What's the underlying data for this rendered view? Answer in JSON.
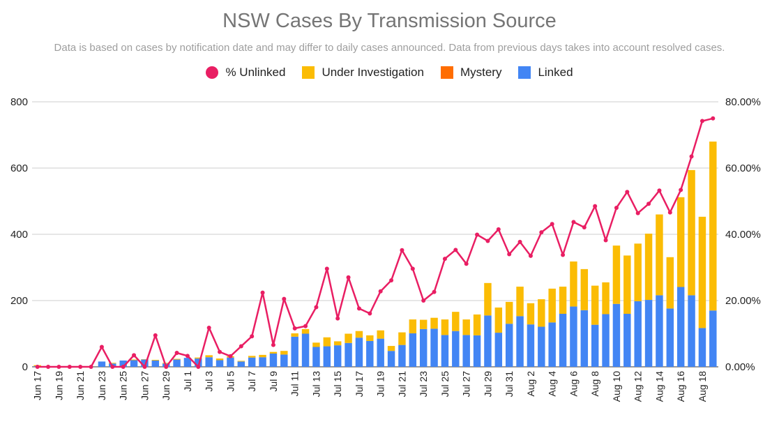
{
  "chart_data": {
    "type": "bar",
    "title": "NSW Cases By Transmission Source",
    "subtitle": "Data is based on cases by notification date and may differ to daily cases announced. Data from previous days takes into account resolved cases.",
    "legend": [
      {
        "name": "% Unlinked",
        "color": "#e91e63",
        "marker": "dot"
      },
      {
        "name": "Under Investigation",
        "color": "#fbbc04",
        "marker": "square"
      },
      {
        "name": "Mystery",
        "color": "#ff6d01",
        "marker": "square"
      },
      {
        "name": "Linked",
        "color": "#4285f4",
        "marker": "square"
      }
    ],
    "legend_position": "top",
    "grid": true,
    "ylim": [
      0,
      800
    ],
    "yticks": [
      "0",
      "200",
      "400",
      "600",
      "800"
    ],
    "y2lim": [
      0,
      80
    ],
    "y2ticks": [
      "0.00%",
      "20.00%",
      "40.00%",
      "60.00%",
      "80.00%"
    ],
    "categories": [
      "Jun 17",
      "Jun 18",
      "Jun 19",
      "Jun 20",
      "Jun 21",
      "Jun 22",
      "Jun 23",
      "Jun 24",
      "Jun 25",
      "Jun 26",
      "Jun 27",
      "Jun 28",
      "Jun 29",
      "Jun 30",
      "Jul 1",
      "Jul 2",
      "Jul 3",
      "Jul 4",
      "Jul 5",
      "Jul 6",
      "Jul 7",
      "Jul 8",
      "Jul 9",
      "Jul 10",
      "Jul 11",
      "Jul 12",
      "Jul 13",
      "Jul 14",
      "Jul 15",
      "Jul 16",
      "Jul 17",
      "Jul 18",
      "Jul 19",
      "Jul 20",
      "Jul 21",
      "Jul 22",
      "Jul 23",
      "Jul 24",
      "Jul 25",
      "Jul 26",
      "Jul 27",
      "Jul 28",
      "Jul 29",
      "Jul 30",
      "Jul 31",
      "Aug 1",
      "Aug 2",
      "Aug 3",
      "Aug 4",
      "Aug 5",
      "Aug 6",
      "Aug 7",
      "Aug 8",
      "Aug 9",
      "Aug 10",
      "Aug 11",
      "Aug 12",
      "Aug 13",
      "Aug 14",
      "Aug 15",
      "Aug 16",
      "Aug 17",
      "Aug 18",
      "Aug 19"
    ],
    "x_tick_labels": [
      "Jun 17",
      "Jun 19",
      "Jun 21",
      "Jun 23",
      "Jun 25",
      "Jun 27",
      "Jun 29",
      "Jul 1",
      "Jul 3",
      "Jul 5",
      "Jul 7",
      "Jul 9",
      "Jul 11",
      "Jul 13",
      "Jul 15",
      "Jul 17",
      "Jul 19",
      "Jul 21",
      "Jul 23",
      "Jul 25",
      "Jul 27",
      "Jul 29",
      "Jul 31",
      "Aug 2",
      "Aug 4",
      "Aug 6",
      "Aug 8",
      "Aug 10",
      "Aug 12",
      "Aug 14",
      "Aug 16",
      "Aug 18"
    ],
    "series": [
      {
        "name": "Linked",
        "color": "#4285f4",
        "axis": "left",
        "values": [
          2,
          0,
          0,
          0,
          0,
          0,
          16,
          10,
          19,
          20,
          22,
          19,
          10,
          22,
          27,
          25,
          29,
          20,
          28,
          16,
          28,
          29,
          40,
          37,
          91,
          100,
          60,
          62,
          65,
          72,
          88,
          78,
          85,
          48,
          66,
          101,
          114,
          115,
          96,
          108,
          96,
          95,
          155,
          103,
          130,
          153,
          128,
          121,
          134,
          160,
          182,
          171,
          127,
          159,
          190,
          160,
          198,
          202,
          216,
          176,
          241,
          216,
          117,
          170
        ]
      },
      {
        "name": "Mystery",
        "color": "#ff6d01",
        "axis": "left",
        "values": [
          0,
          0,
          0,
          0,
          0,
          0,
          0,
          0,
          0,
          0,
          0,
          0,
          0,
          0,
          0,
          0,
          0,
          0,
          0,
          0,
          0,
          0,
          0,
          0,
          0,
          0,
          0,
          0,
          0,
          0,
          0,
          0,
          0,
          0,
          0,
          0,
          0,
          0,
          0,
          0,
          0,
          0,
          0,
          0,
          0,
          0,
          0,
          0,
          0,
          0,
          0,
          0,
          0,
          0,
          0,
          0,
          0,
          0,
          0,
          0,
          0,
          0,
          0,
          0
        ]
      },
      {
        "name": "Under Investigation",
        "color": "#fbbc04",
        "axis": "left",
        "values": [
          3,
          0,
          0,
          0,
          0,
          0,
          0,
          2,
          0,
          2,
          1,
          2,
          2,
          2,
          0,
          3,
          6,
          5,
          4,
          2,
          5,
          7,
          5,
          11,
          10,
          14,
          13,
          27,
          12,
          28,
          20,
          17,
          25,
          15,
          38,
          42,
          28,
          33,
          47,
          58,
          47,
          63,
          98,
          76,
          66,
          89,
          64,
          83,
          102,
          82,
          136,
          124,
          118,
          96,
          176,
          176,
          174,
          200,
          244,
          155,
          271,
          378,
          336,
          510
        ]
      },
      {
        "name": "% Unlinked",
        "color": "#e91e63",
        "axis": "right",
        "type": "line",
        "values": [
          0,
          0,
          0,
          0,
          0,
          0,
          6,
          0,
          0,
          3.5,
          0,
          9.5,
          0,
          4.2,
          3.3,
          0,
          11.8,
          4.5,
          3.2,
          6.2,
          9.2,
          22.4,
          6.6,
          20.5,
          11.6,
          12.3,
          18,
          29.6,
          14.6,
          27,
          17.6,
          16.1,
          22.8,
          26.1,
          35.2,
          29.6,
          20,
          22.6,
          32.6,
          35.3,
          31.1,
          39.9,
          38,
          41.5,
          34,
          37.7,
          33.5,
          40.6,
          43.1,
          33.8,
          43.7,
          42.1,
          48.5,
          38.2,
          48,
          52.8,
          46.4,
          49.2,
          53.2,
          46.6,
          53.4,
          63.5,
          74.2,
          75
        ]
      }
    ]
  }
}
